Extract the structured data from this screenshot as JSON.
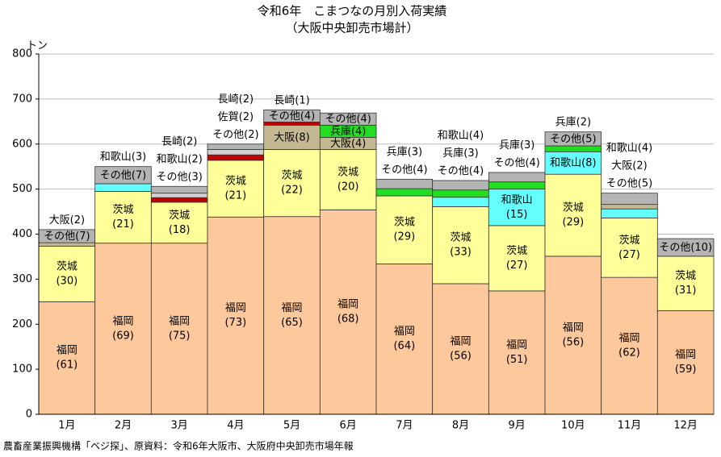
{
  "chart_data": {
    "type": "bar",
    "stacked": true,
    "title": "令和6年　こまつなの月別入荷実績",
    "subtitle": "（大阪中央卸売市場計）",
    "y_unit": "トン",
    "source": "農畜産業振興機構「ベジ探」、原資料：令和6年大阪市、大阪府中央卸売市場年報",
    "categories": [
      "1月",
      "2月",
      "3月",
      "4月",
      "5月",
      "6月",
      "7月",
      "8月",
      "9月",
      "10月",
      "11月",
      "12月"
    ],
    "stacks": [
      [
        {
          "name": "福岡",
          "share": "(61)",
          "value": 250,
          "color": "#fdc89c"
        },
        {
          "name": "茨城",
          "share": "(30)",
          "value": 123,
          "color": "#ffff99"
        },
        {
          "name": "大阪",
          "share": "(2)",
          "value": 8,
          "color": "#c4b893"
        },
        {
          "name": "その他",
          "share": "(7)",
          "value": 29,
          "color": "#b4b4b4"
        }
      ],
      [
        {
          "name": "福岡",
          "share": "(69)",
          "value": 380,
          "color": "#fdc89c"
        },
        {
          "name": "茨城",
          "share": "(21)",
          "value": 115,
          "color": "#ffff99"
        },
        {
          "name": "和歌山",
          "share": "(3)",
          "value": 17,
          "color": "#66ffff"
        },
        {
          "name": "その他",
          "share": "(7)",
          "value": 38,
          "color": "#b4b4b4"
        }
      ],
      [
        {
          "name": "福岡",
          "share": "(75)",
          "value": 380,
          "color": "#fdc89c"
        },
        {
          "name": "茨城",
          "share": "(18)",
          "value": 91,
          "color": "#ffff99"
        },
        {
          "name": "長崎",
          "share": "(2)",
          "value": 10,
          "color": "#c00000"
        },
        {
          "name": "和歌山",
          "share": "(2)",
          "value": 10,
          "color": "#d0d0d0"
        },
        {
          "name": "その他",
          "share": "(3)",
          "value": 15,
          "color": "#b4b4b4"
        }
      ],
      [
        {
          "name": "福岡",
          "share": "(73)",
          "value": 438,
          "color": "#fdc89c"
        },
        {
          "name": "茨城",
          "share": "(21)",
          "value": 126,
          "color": "#ffff99"
        },
        {
          "name": "長崎",
          "share": "(2)",
          "value": 12,
          "color": "#c00000"
        },
        {
          "name": "佐賀",
          "share": "(2)",
          "value": 12,
          "color": "#d0d0d0"
        },
        {
          "name": "その他",
          "share": "(2)",
          "value": 12,
          "color": "#b4b4b4"
        }
      ],
      [
        {
          "name": "福岡",
          "share": "(65)",
          "value": 439,
          "color": "#fdc89c"
        },
        {
          "name": "茨城",
          "share": "(22)",
          "value": 149,
          "color": "#ffff99"
        },
        {
          "name": "大阪",
          "share": "(8)",
          "value": 54,
          "color": "#c4b893"
        },
        {
          "name": "長崎",
          "share": "(1)",
          "value": 7,
          "color": "#c00000"
        },
        {
          "name": "その他",
          "share": "(4)",
          "value": 27,
          "color": "#b4b4b4"
        }
      ],
      [
        {
          "name": "福岡",
          "share": "(68)",
          "value": 454,
          "color": "#fdc89c"
        },
        {
          "name": "茨城",
          "share": "(20)",
          "value": 134,
          "color": "#ffff99"
        },
        {
          "name": "大阪",
          "share": "(4)",
          "value": 27,
          "color": "#c4b893"
        },
        {
          "name": "兵庫",
          "share": "(4)",
          "value": 27,
          "color": "#22dd22"
        },
        {
          "name": "その他",
          "share": "(4)",
          "value": 27,
          "color": "#b4b4b4"
        }
      ],
      [
        {
          "name": "福岡",
          "share": "(64)",
          "value": 334,
          "color": "#fdc89c"
        },
        {
          "name": "茨城",
          "share": "(29)",
          "value": 151,
          "color": "#ffff99"
        },
        {
          "name": "兵庫",
          "share": "(3)",
          "value": 16,
          "color": "#22dd22"
        },
        {
          "name": "その他",
          "share": "(4)",
          "value": 21,
          "color": "#b4b4b4"
        }
      ],
      [
        {
          "name": "福岡",
          "share": "(56)",
          "value": 290,
          "color": "#fdc89c"
        },
        {
          "name": "茨城",
          "share": "(33)",
          "value": 171,
          "color": "#ffff99"
        },
        {
          "name": "和歌山",
          "share": "(4)",
          "value": 21,
          "color": "#66ffff"
        },
        {
          "name": "兵庫",
          "share": "(3)",
          "value": 16,
          "color": "#22dd22"
        },
        {
          "name": "その他",
          "share": "(4)",
          "value": 21,
          "color": "#b4b4b4"
        }
      ],
      [
        {
          "name": "福岡",
          "share": "(51)",
          "value": 274,
          "color": "#fdc89c"
        },
        {
          "name": "茨城",
          "share": "(27)",
          "value": 145,
          "color": "#ffff99"
        },
        {
          "name": "和歌山",
          "share": "(15)",
          "value": 81,
          "color": "#66ffff"
        },
        {
          "name": "兵庫",
          "share": "(3)",
          "value": 16,
          "color": "#22dd22"
        },
        {
          "name": "その他",
          "share": "(4)",
          "value": 21,
          "color": "#b4b4b4"
        }
      ],
      [
        {
          "name": "福岡",
          "share": "(56)",
          "value": 351,
          "color": "#fdc89c"
        },
        {
          "name": "茨城",
          "share": "(29)",
          "value": 182,
          "color": "#ffff99"
        },
        {
          "name": "和歌山",
          "share": "(8)",
          "value": 50,
          "color": "#66ffff"
        },
        {
          "name": "兵庫",
          "share": "(2)",
          "value": 13,
          "color": "#22dd22"
        },
        {
          "name": "その他",
          "share": "(5)",
          "value": 31,
          "color": "#b4b4b4"
        }
      ],
      [
        {
          "name": "福岡",
          "share": "(62)",
          "value": 304,
          "color": "#fdc89c"
        },
        {
          "name": "茨城",
          "share": "(27)",
          "value": 132,
          "color": "#ffff99"
        },
        {
          "name": "和歌山",
          "share": "(4)",
          "value": 20,
          "color": "#66ffff"
        },
        {
          "name": "大阪",
          "share": "(2)",
          "value": 10,
          "color": "#c4b893"
        },
        {
          "name": "その他",
          "share": "(5)",
          "value": 25,
          "color": "#b4b4b4"
        }
      ],
      [
        {
          "name": "福岡",
          "share": "(59)",
          "value": 230,
          "color": "#fdc89c"
        },
        {
          "name": "茨城",
          "share": "(31)",
          "value": 121,
          "color": "#ffff99"
        },
        {
          "name": "その他",
          "share": "(10)",
          "value": 39,
          "color": "#b4b4b4"
        }
      ]
    ],
    "ylim": [
      0,
      800
    ],
    "yticks": [
      0,
      100,
      200,
      300,
      400,
      500,
      600,
      700,
      800
    ],
    "grid": true
  }
}
